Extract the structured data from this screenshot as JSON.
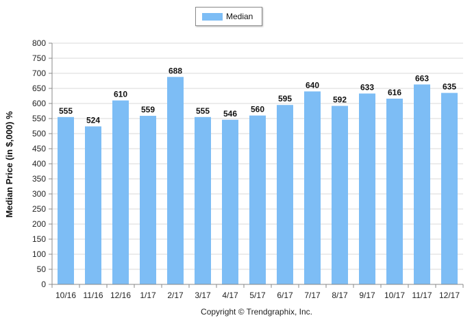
{
  "chart_data": {
    "type": "bar",
    "categories": [
      "10/16",
      "11/16",
      "12/16",
      "1/17",
      "2/17",
      "3/17",
      "4/17",
      "5/17",
      "6/17",
      "7/17",
      "8/17",
      "9/17",
      "10/17",
      "11/17",
      "12/17"
    ],
    "series": [
      {
        "name": "Median",
        "values": [
          555,
          524,
          610,
          559,
          688,
          555,
          546,
          560,
          595,
          640,
          592,
          633,
          616,
          663,
          635
        ]
      }
    ],
    "data_labels": [
      "555",
      "524",
      "610",
      "559",
      "688",
      "555",
      "546",
      "560",
      "595",
      "640",
      "592",
      "633",
      "616",
      "663",
      "635"
    ],
    "ylabel": "Median Price (in $,000) %",
    "xlabel": "",
    "ylim": [
      0,
      800
    ],
    "yticks": [
      0,
      50,
      100,
      150,
      200,
      250,
      300,
      350,
      400,
      450,
      500,
      550,
      600,
      650,
      700,
      750,
      800
    ],
    "grid": true,
    "legend_position": "top-center"
  },
  "colors": {
    "bar": "#7dbdf5",
    "grid": "#d9d9d9",
    "axis": "#888888"
  },
  "legend": {
    "label": "Median"
  },
  "footer": {
    "copyright": "Copyright © Trendgraphix, Inc."
  }
}
